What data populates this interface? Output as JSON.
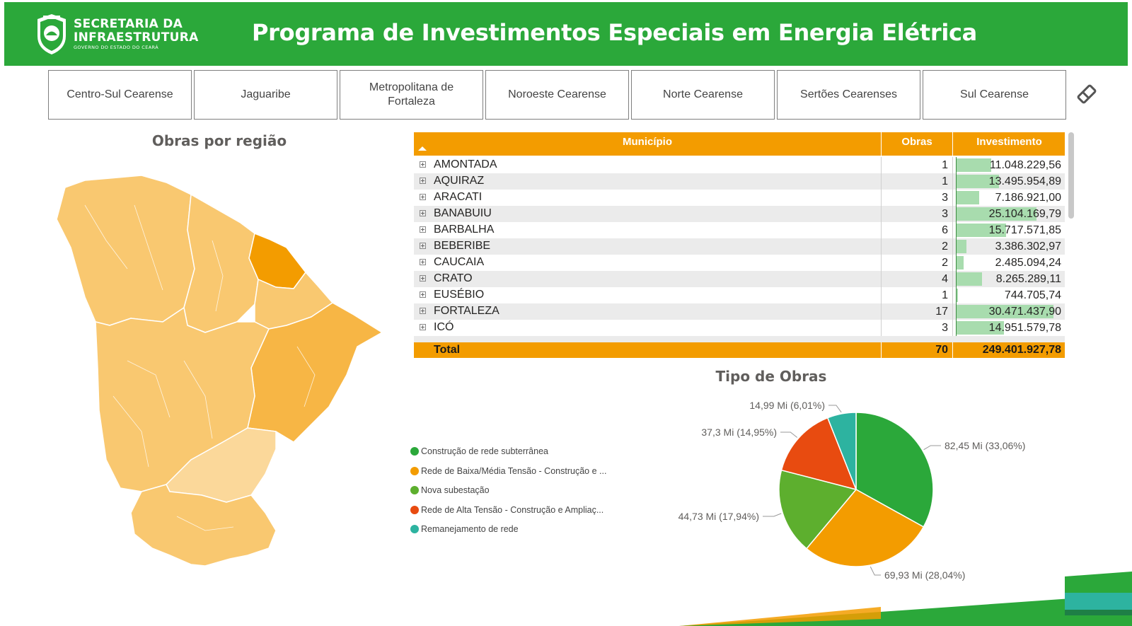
{
  "header": {
    "logo_line1": "SECRETARIA DA",
    "logo_line2": "INFRAESTRUTURA",
    "logo_sub": "GOVERNO DO ESTADO DO CEARÁ",
    "title": "Programa de Investimentos Especiais em Energia Elétrica",
    "brand_color": "#2ba83a"
  },
  "regions": [
    "Centro-Sul Cearense",
    "Jaguaribe",
    "Metropolitana de Fortaleza",
    "Noroeste Cearense",
    "Norte Cearense",
    "Sertões Cearenses",
    "Sul Cearense"
  ],
  "eraser_icon": "eraser-icon",
  "map": {
    "title": "Obras por região",
    "colors": [
      "#f9c870",
      "#f7b645",
      "#f39c00",
      "#fbd89a"
    ]
  },
  "table": {
    "headers": {
      "municipio": "Município",
      "obras": "Obras",
      "investimento": "Investimento"
    },
    "rows": [
      {
        "municipio": "AMONTADA",
        "obras": "1",
        "investimento": "11.048.229,56",
        "value": 11048229.56
      },
      {
        "municipio": "AQUIRAZ",
        "obras": "1",
        "investimento": "13.495.954,89",
        "value": 13495954.89
      },
      {
        "municipio": "ARACATI",
        "obras": "3",
        "investimento": "7.186.921,00",
        "value": 7186921.0
      },
      {
        "municipio": "BANABUIU",
        "obras": "3",
        "investimento": "25.104.169,79",
        "value": 25104169.79
      },
      {
        "municipio": "BARBALHA",
        "obras": "6",
        "investimento": "15.717.571,85",
        "value": 15717571.85
      },
      {
        "municipio": "BEBERIBE",
        "obras": "2",
        "investimento": "3.386.302,97",
        "value": 3386302.97
      },
      {
        "municipio": "CAUCAIA",
        "obras": "2",
        "investimento": "2.485.094,24",
        "value": 2485094.24
      },
      {
        "municipio": "CRATO",
        "obras": "4",
        "investimento": "8.265.289,11",
        "value": 8265289.11
      },
      {
        "municipio": "EUSÉBIO",
        "obras": "1",
        "investimento": "744.705,74",
        "value": 744705.74
      },
      {
        "municipio": "FORTALEZA",
        "obras": "17",
        "investimento": "30.471.437,90",
        "value": 30471437.9
      },
      {
        "municipio": "ICÓ",
        "obras": "3",
        "investimento": "14.951.579,78",
        "value": 14951579.78
      }
    ],
    "total_label": "Total",
    "total_obras": "70",
    "total_investimento": "249.401.927,78",
    "header_color": "#f39c00",
    "databar_color": "#a8dcae"
  },
  "pie": {
    "title": "Tipo de Obras",
    "legend": [
      {
        "label": "Construção de rede subterrânea",
        "color": "#2ba83a"
      },
      {
        "label": "Rede de Baixa/Média Tensão - Construção e ...",
        "color": "#f39c00"
      },
      {
        "label": "Nova subestação",
        "color": "#5daf2e"
      },
      {
        "label": "Rede de Alta Tensão - Construção e Ampliaç...",
        "color": "#e84b10"
      },
      {
        "label": "Remanejamento de rede",
        "color": "#2db3a0"
      }
    ]
  },
  "chart_data": {
    "type": "pie",
    "title": "Tipo de Obras",
    "categories": [
      "Construção de rede subterrânea",
      "Rede de Baixa/Média Tensão - Construção e ...",
      "Nova subestação",
      "Rede de Alta Tensão - Construção e Ampliaç...",
      "Remanejamento de rede"
    ],
    "values": [
      82.45,
      69.93,
      44.73,
      37.3,
      14.99
    ],
    "percents": [
      33.06,
      28.04,
      17.94,
      14.95,
      6.01
    ],
    "data_labels": [
      "82,45 Mi (33,06%)",
      "69,93 Mi (28,04%)",
      "44,73 Mi (17,94%)",
      "37,3 Mi (14,95%)",
      "14,99 Mi (6,01%)"
    ],
    "colors": [
      "#2ba83a",
      "#f39c00",
      "#5daf2e",
      "#e84b10",
      "#2db3a0"
    ],
    "legend_position": "left"
  }
}
